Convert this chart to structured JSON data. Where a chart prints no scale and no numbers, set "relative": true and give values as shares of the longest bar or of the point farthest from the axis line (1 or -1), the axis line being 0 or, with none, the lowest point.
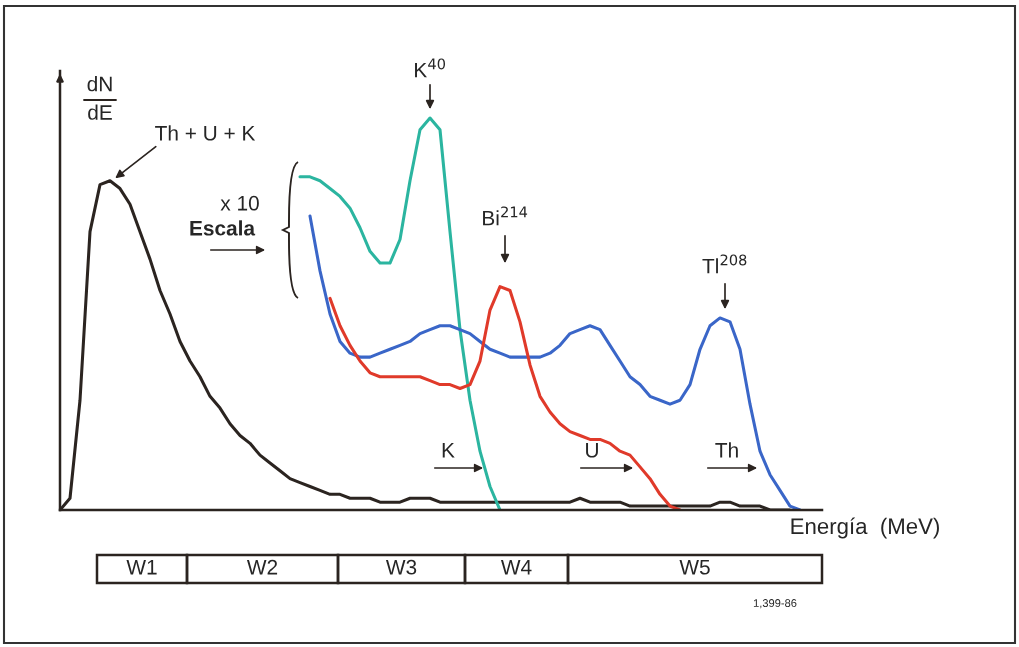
{
  "chart_data": {
    "type": "line",
    "relative": true,
    "ylabel": "dN\ndE",
    "xlabel": "Energía  (MeV)",
    "categories": [
      null,
      null,
      null,
      null,
      null,
      null,
      null,
      null,
      null,
      null,
      null,
      null,
      null,
      null,
      null,
      null,
      null,
      null,
      null,
      null,
      null,
      null,
      null,
      null,
      null,
      null,
      null,
      null,
      null,
      null,
      null,
      null,
      null,
      null,
      null,
      null,
      null,
      null,
      null,
      null,
      null,
      null,
      null,
      null,
      null,
      null,
      null,
      null,
      null,
      null,
      null,
      null,
      null,
      null,
      null,
      null,
      null,
      null,
      null,
      null,
      null,
      null,
      null,
      null,
      null,
      null,
      null,
      null,
      null,
      null,
      null,
      null,
      null,
      null,
      null
    ],
    "series": [
      {
        "color": "#2b2420",
        "values": [
          0,
          0.03,
          0.28,
          0.71,
          0.83,
          0.84,
          0.82,
          0.78,
          0.71,
          0.64,
          0.56,
          0.5,
          0.43,
          0.38,
          0.34,
          0.29,
          0.26,
          0.22,
          0.19,
          0.17,
          0.14,
          0.12,
          0.1,
          0.08,
          0.07,
          0.06,
          0.05,
          0.04,
          0.04,
          0.03,
          0.03,
          0.03,
          0.02,
          0.02,
          0.02,
          0.03,
          0.03,
          0.03,
          0.02,
          0.02,
          0.02,
          0.02,
          0.02,
          0.02,
          0.02,
          0.02,
          0.02,
          0.02,
          0.02,
          0.02,
          0.02,
          0.02,
          0.03,
          0.02,
          0.02,
          0.02,
          0.02,
          0.01,
          0.01,
          0.01,
          0.01,
          0.01,
          0.01,
          0.01,
          0.01,
          0.01,
          0.02,
          0.02,
          0.01,
          0.01,
          0.01,
          0,
          0,
          0,
          null
        ]
      },
      {
        "color": "#2bb5a0",
        "values": [
          null,
          null,
          null,
          null,
          null,
          null,
          null,
          null,
          null,
          null,
          null,
          null,
          null,
          null,
          null,
          null,
          null,
          null,
          null,
          null,
          null,
          null,
          null,
          null,
          0.85,
          0.85,
          0.84,
          0.82,
          0.8,
          0.77,
          0.72,
          0.66,
          0.63,
          0.63,
          0.69,
          0.84,
          0.97,
          1,
          0.97,
          0.71,
          0.46,
          0.28,
          0.15,
          0.06,
          0,
          null,
          null,
          null,
          null,
          null,
          null,
          null,
          null,
          null,
          null,
          null,
          null,
          null,
          null,
          null,
          null,
          null,
          null,
          null,
          null,
          null,
          null,
          null,
          null,
          null,
          null,
          null,
          null,
          null,
          null
        ]
      },
      {
        "color": "#3a66c8",
        "values": [
          null,
          null,
          null,
          null,
          null,
          null,
          null,
          null,
          null,
          null,
          null,
          null,
          null,
          null,
          null,
          null,
          null,
          null,
          null,
          null,
          null,
          null,
          null,
          null,
          null,
          0.75,
          0.61,
          0.5,
          0.43,
          0.4,
          0.39,
          0.39,
          0.4,
          0.41,
          0.42,
          0.43,
          0.45,
          0.46,
          0.47,
          0.47,
          0.46,
          0.45,
          0.43,
          0.41,
          0.4,
          0.39,
          0.39,
          0.39,
          0.39,
          0.4,
          0.42,
          0.45,
          0.46,
          0.47,
          0.46,
          0.42,
          0.38,
          0.34,
          0.32,
          0.29,
          0.28,
          0.27,
          0.28,
          0.32,
          0.41,
          0.47,
          0.49,
          0.48,
          0.41,
          0.27,
          0.15,
          0.09,
          0.05,
          0.01,
          0
        ]
      },
      {
        "color": "#e03a2a",
        "values": [
          null,
          null,
          null,
          null,
          null,
          null,
          null,
          null,
          null,
          null,
          null,
          null,
          null,
          null,
          null,
          null,
          null,
          null,
          null,
          null,
          null,
          null,
          null,
          null,
          null,
          null,
          null,
          0.54,
          0.47,
          0.42,
          0.38,
          0.35,
          0.34,
          0.34,
          0.34,
          0.34,
          0.34,
          0.33,
          0.32,
          0.32,
          0.31,
          0.32,
          0.38,
          0.51,
          0.57,
          0.56,
          0.48,
          0.37,
          0.29,
          0.25,
          0.22,
          0.2,
          0.19,
          0.18,
          0.18,
          0.17,
          0.15,
          0.14,
          0.11,
          0.08,
          0.04,
          0.01,
          0,
          null,
          null,
          null,
          null,
          null,
          null,
          null,
          null,
          null,
          null,
          null,
          null
        ]
      }
    ],
    "annotations": [
      "Th + U + K",
      "K$^{40}$",
      "Bi$^{214}$",
      "Tl$^{208}$",
      "x 10",
      "Escala",
      "K",
      "U",
      "Th",
      "1,399-86",
      "W1",
      "W2",
      "W3",
      "W4",
      "W5"
    ]
  }
}
